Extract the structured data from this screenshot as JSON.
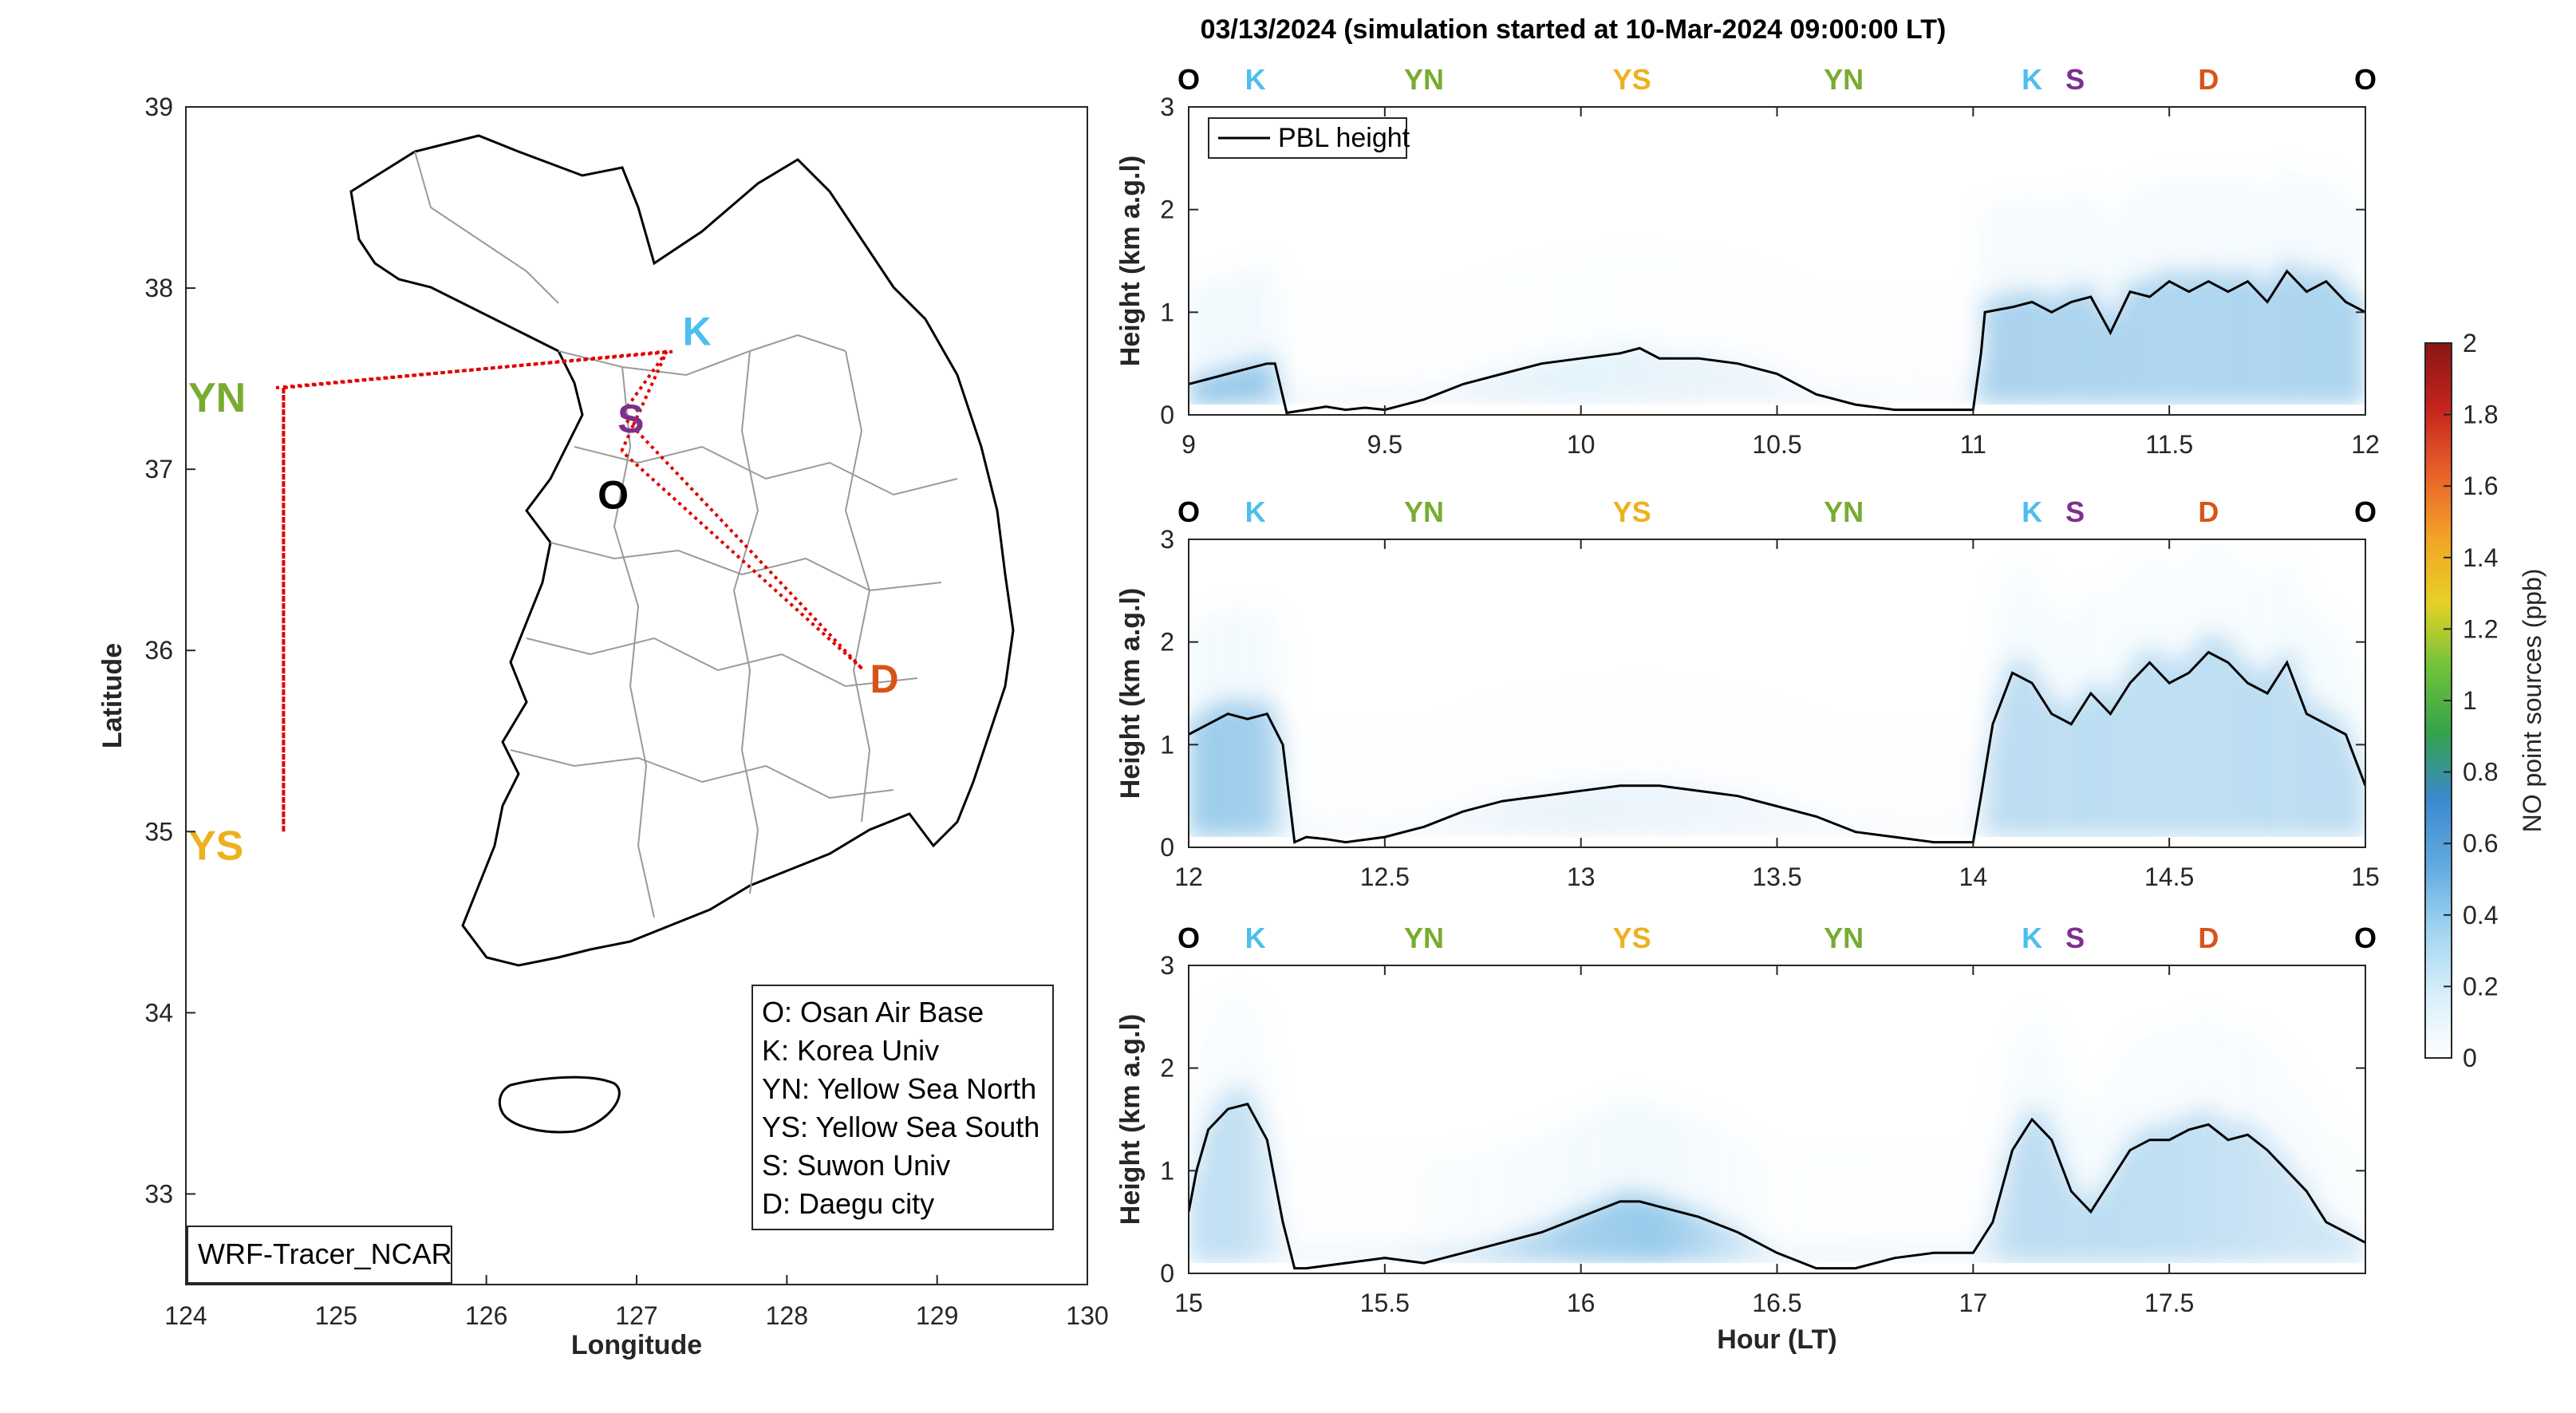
{
  "title": "03/13/2024 (simulation started at 10-Mar-2024 09:00:00 LT)",
  "colors": {
    "O": "#000000",
    "K": "#4DBEEE",
    "YN": "#77AC30",
    "YS": "#EDB120",
    "S": "#7E2F8E",
    "D": "#D95319",
    "track": "#e00000",
    "pbl": "#000000"
  },
  "map": {
    "xlabel": "Longitude",
    "ylabel": "Latitude",
    "xticks": [
      "124",
      "125",
      "126",
      "127",
      "128",
      "129",
      "130"
    ],
    "yticks": [
      "39",
      "38",
      "37",
      "36",
      "35",
      "34",
      "33"
    ],
    "xlim": [
      124,
      130
    ],
    "ylim": [
      32.5,
      39
    ],
    "model_label": "WRF-Tracer_NCAR",
    "sites": [
      {
        "code": "K",
        "lon": 127.2,
        "lat": 37.65
      },
      {
        "code": "S",
        "lon": 126.9,
        "lat": 37.3
      },
      {
        "code": "O",
        "lon": 126.9,
        "lat": 37.1
      },
      {
        "code": "YN",
        "lon": 124.6,
        "lat": 37.45
      },
      {
        "code": "YS",
        "lon": 124.6,
        "lat": 35.0
      },
      {
        "code": "D",
        "lon": 128.5,
        "lat": 35.9
      }
    ],
    "legend": [
      "O: Osan Air Base",
      "K: Korea Univ",
      "YN: Yellow Sea North",
      "YS: Yellow Sea South",
      "S: Suwon Univ",
      "D: Daegu city"
    ]
  },
  "chart_data": [
    {
      "type": "heatmap",
      "xlabel": "",
      "ylabel": "Height (km a.g.l)",
      "xlim": [
        9,
        12
      ],
      "ylim": [
        0,
        3
      ],
      "xticks": [
        "9",
        "9.5",
        "10",
        "10.5",
        "11",
        "11.5",
        "12"
      ],
      "yticks": [
        "0",
        "1",
        "2",
        "3"
      ],
      "legend": "PBL height",
      "legend_position": "top-left",
      "site_sequence": [
        "O",
        "K",
        "YN",
        "YS",
        "YN",
        "K",
        "S",
        "D",
        "O"
      ],
      "site_times": [
        9.0,
        9.17,
        9.6,
        10.13,
        10.67,
        11.15,
        11.26,
        11.6,
        12.0
      ],
      "pbl_height": {
        "x": [
          9.0,
          9.05,
          9.1,
          9.15,
          9.2,
          9.22,
          9.25,
          9.3,
          9.35,
          9.4,
          9.45,
          9.5,
          9.6,
          9.7,
          9.8,
          9.9,
          10.0,
          10.1,
          10.15,
          10.2,
          10.3,
          10.4,
          10.5,
          10.6,
          10.7,
          10.8,
          10.9,
          11.0,
          11.02,
          11.03,
          11.1,
          11.15,
          11.2,
          11.25,
          11.3,
          11.35,
          11.4,
          11.45,
          11.5,
          11.55,
          11.6,
          11.65,
          11.7,
          11.75,
          11.8,
          11.85,
          11.9,
          11.95,
          12.0
        ],
        "y": [
          0.3,
          0.35,
          0.4,
          0.45,
          0.5,
          0.5,
          0.02,
          0.05,
          0.08,
          0.05,
          0.07,
          0.05,
          0.15,
          0.3,
          0.4,
          0.5,
          0.55,
          0.6,
          0.65,
          0.55,
          0.55,
          0.5,
          0.4,
          0.2,
          0.1,
          0.05,
          0.05,
          0.05,
          0.6,
          1.0,
          1.05,
          1.1,
          1.0,
          1.1,
          1.15,
          0.8,
          1.2,
          1.15,
          1.3,
          1.2,
          1.3,
          1.2,
          1.3,
          1.1,
          1.4,
          1.2,
          1.3,
          1.1,
          1.0
        ]
      }
    },
    {
      "type": "heatmap",
      "xlabel": "",
      "ylabel": "Height (km a.g.l)",
      "xlim": [
        12,
        15
      ],
      "ylim": [
        0,
        3
      ],
      "xticks": [
        "12",
        "12.5",
        "13",
        "13.5",
        "14",
        "14.5",
        "15"
      ],
      "yticks": [
        "0",
        "1",
        "2",
        "3"
      ],
      "site_sequence": [
        "O",
        "K",
        "YN",
        "YS",
        "YN",
        "K",
        "S",
        "D",
        "O"
      ],
      "site_times": [
        12.0,
        12.17,
        12.6,
        13.13,
        13.67,
        14.15,
        14.26,
        14.6,
        15.0
      ],
      "pbl_height": {
        "x": [
          12.0,
          12.05,
          12.1,
          12.15,
          12.2,
          12.24,
          12.27,
          12.3,
          12.35,
          12.4,
          12.5,
          12.6,
          12.7,
          12.8,
          12.9,
          13.0,
          13.1,
          13.2,
          13.3,
          13.4,
          13.5,
          13.6,
          13.7,
          13.8,
          13.9,
          14.0,
          14.02,
          14.05,
          14.1,
          14.15,
          14.2,
          14.25,
          14.3,
          14.35,
          14.4,
          14.45,
          14.5,
          14.55,
          14.6,
          14.65,
          14.7,
          14.75,
          14.8,
          14.85,
          14.9,
          14.95,
          15.0
        ],
        "y": [
          1.1,
          1.2,
          1.3,
          1.25,
          1.3,
          1.0,
          0.05,
          0.1,
          0.08,
          0.05,
          0.1,
          0.2,
          0.35,
          0.45,
          0.5,
          0.55,
          0.6,
          0.6,
          0.55,
          0.5,
          0.4,
          0.3,
          0.15,
          0.1,
          0.05,
          0.05,
          0.5,
          1.2,
          1.7,
          1.6,
          1.3,
          1.2,
          1.5,
          1.3,
          1.6,
          1.8,
          1.6,
          1.7,
          1.9,
          1.8,
          1.6,
          1.5,
          1.8,
          1.3,
          1.2,
          1.1,
          0.6
        ]
      }
    },
    {
      "type": "heatmap",
      "xlabel": "Hour (LT)",
      "ylabel": "Height (km a.g.l)",
      "xlim": [
        15,
        18
      ],
      "ylim": [
        0,
        3
      ],
      "xticks": [
        "15",
        "15.5",
        "16",
        "16.5",
        "17",
        "17.5"
      ],
      "yticks": [
        "0",
        "1",
        "2",
        "3"
      ],
      "site_sequence": [
        "O",
        "K",
        "YN",
        "YS",
        "YN",
        "K",
        "S",
        "D",
        "O"
      ],
      "site_times": [
        15.0,
        15.17,
        15.6,
        16.13,
        16.67,
        17.15,
        17.26,
        17.6,
        18.0
      ],
      "pbl_height": {
        "x": [
          15.0,
          15.02,
          15.05,
          15.1,
          15.15,
          15.2,
          15.24,
          15.27,
          15.3,
          15.4,
          15.5,
          15.6,
          15.7,
          15.8,
          15.9,
          16.0,
          16.1,
          16.15,
          16.2,
          16.3,
          16.4,
          16.5,
          16.6,
          16.7,
          16.8,
          16.9,
          17.0,
          17.05,
          17.1,
          17.15,
          17.2,
          17.25,
          17.3,
          17.35,
          17.4,
          17.45,
          17.5,
          17.55,
          17.6,
          17.65,
          17.7,
          17.75,
          17.8,
          17.85,
          17.9,
          17.95,
          18.0
        ],
        "y": [
          0.6,
          1.0,
          1.4,
          1.6,
          1.65,
          1.3,
          0.5,
          0.05,
          0.05,
          0.1,
          0.15,
          0.1,
          0.2,
          0.3,
          0.4,
          0.55,
          0.7,
          0.7,
          0.65,
          0.55,
          0.4,
          0.2,
          0.05,
          0.05,
          0.15,
          0.2,
          0.2,
          0.5,
          1.2,
          1.5,
          1.3,
          0.8,
          0.6,
          0.9,
          1.2,
          1.3,
          1.3,
          1.4,
          1.45,
          1.3,
          1.35,
          1.2,
          1.0,
          0.8,
          0.5,
          0.4,
          0.3
        ]
      }
    },
    {
      "type": "colorbar",
      "label": "NO point sources (ppb)",
      "range": [
        0,
        2
      ],
      "ticks": [
        "0",
        "0.2",
        "0.4",
        "0.6",
        "0.8",
        "1",
        "1.2",
        "1.4",
        "1.6",
        "1.8",
        "2"
      ],
      "colormap": [
        "#ffffff",
        "#d6eefa",
        "#9fd3f0",
        "#5fa9e0",
        "#3b89cd",
        "#34a24a",
        "#6fc23a",
        "#e5d126",
        "#f3a326",
        "#e8612a",
        "#c5241e",
        "#8a1515"
      ]
    }
  ]
}
